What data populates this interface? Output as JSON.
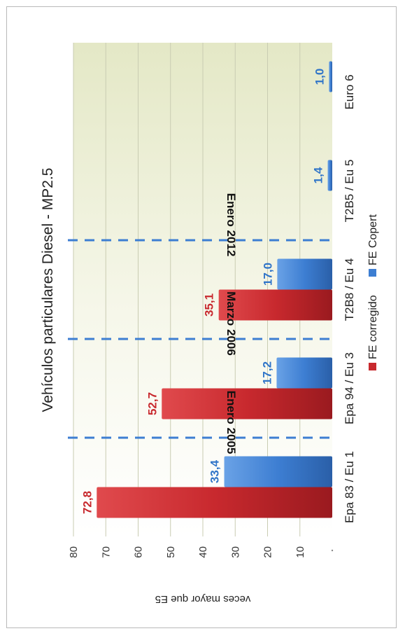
{
  "chart_data": {
    "type": "bar",
    "title": "Vehículos particulares Diesel - MP2.5",
    "ylabel": "veces mayor que E5",
    "xlabel": "",
    "ylim": [
      0,
      80
    ],
    "yticks": [
      "80",
      "70",
      "60",
      "50",
      "40",
      "30",
      "20",
      "10"
    ],
    "categories": [
      "Epa 83 / Eu 1",
      "Epa 94 / Eu 3",
      "T2B8 / Eu 4",
      "T2B5 / Eu 5",
      "Euro 6"
    ],
    "series": [
      {
        "name": "FE corregido",
        "color": "#c8292e",
        "values": [
          72.8,
          52.7,
          35.1,
          null,
          null
        ],
        "labels": [
          "72,8",
          "52,7",
          "35,1",
          "",
          ""
        ]
      },
      {
        "name": "FE Copert",
        "color": "#3d7ed2",
        "values": [
          33.4,
          17.2,
          17.0,
          1.4,
          1.0
        ],
        "labels": [
          "33,4",
          "17,2",
          "17,0",
          "1,4",
          "1,0"
        ]
      }
    ],
    "annotations": [
      "Enero 2005",
      "Marzo 2006",
      "Enero 2012"
    ],
    "legend_position": "bottom",
    "grid": true,
    "orientation": "rotated 90 degrees counter-clockwise"
  }
}
